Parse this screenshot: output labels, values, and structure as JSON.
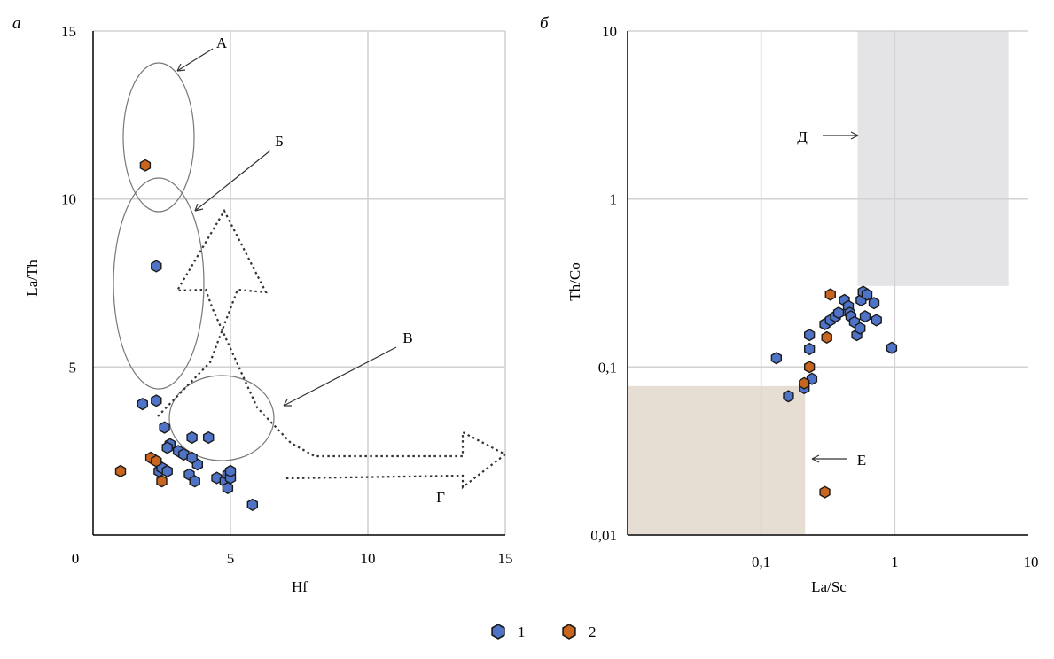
{
  "figure": {
    "panel_a_letter": "а",
    "panel_b_letter": "б",
    "legend": [
      {
        "label": "1",
        "color": "#4f74c7"
      },
      {
        "label": "2",
        "color": "#c8651e"
      }
    ]
  },
  "chart_data": [
    {
      "type": "scatter",
      "panel": "а",
      "title": "",
      "xlabel": "Hf",
      "ylabel": "La/Th",
      "xlim": [
        0,
        15
      ],
      "ylim": [
        0,
        15
      ],
      "x_ticks": [
        {
          "v": 0,
          "t": "0"
        },
        {
          "v": 5,
          "t": "5"
        },
        {
          "v": 10,
          "t": "10"
        },
        {
          "v": 15,
          "t": "15"
        }
      ],
      "y_ticks": [
        {
          "v": 5,
          "t": "5"
        },
        {
          "v": 10,
          "t": "10"
        },
        {
          "v": 15,
          "t": "15"
        }
      ],
      "grid": true,
      "region_labels": [
        "А",
        "Б",
        "В",
        "Г"
      ],
      "series": [
        {
          "name": "1",
          "color": "#4f74c7",
          "points": [
            [
              2.3,
              8.0
            ],
            [
              1.8,
              3.9
            ],
            [
              2.3,
              4.0
            ],
            [
              2.6,
              3.2
            ],
            [
              2.8,
              2.7
            ],
            [
              2.7,
              2.6
            ],
            [
              3.1,
              2.5
            ],
            [
              3.3,
              2.4
            ],
            [
              3.6,
              2.9
            ],
            [
              4.2,
              2.9
            ],
            [
              3.8,
              2.1
            ],
            [
              2.4,
              1.9
            ],
            [
              2.5,
              2.0
            ],
            [
              3.5,
              1.8
            ],
            [
              3.7,
              1.6
            ],
            [
              4.5,
              1.7
            ],
            [
              4.8,
              1.6
            ],
            [
              4.9,
              1.8
            ],
            [
              5.0,
              1.7
            ],
            [
              4.9,
              1.4
            ],
            [
              5.0,
              1.9
            ],
            [
              5.8,
              0.9
            ],
            [
              3.6,
              2.3
            ],
            [
              2.7,
              1.9
            ]
          ]
        },
        {
          "name": "2",
          "color": "#c8651e",
          "points": [
            [
              1.9,
              11.0
            ],
            [
              2.1,
              2.3
            ],
            [
              2.3,
              2.2
            ],
            [
              1.0,
              1.9
            ],
            [
              2.5,
              1.6
            ]
          ]
        }
      ]
    },
    {
      "type": "scatter",
      "panel": "б",
      "title": "",
      "xlabel": "La/Sc",
      "ylabel": "Th/Co",
      "xscale": "log",
      "yscale": "log",
      "xlim": [
        0.01,
        10
      ],
      "ylim": [
        0.01,
        10
      ],
      "x_ticks": [
        {
          "v": 0.1,
          "t": "0,1"
        },
        {
          "v": 1,
          "t": "1"
        },
        {
          "v": 10,
          "t": "10"
        }
      ],
      "y_ticks": [
        {
          "v": 0.01,
          "t": "0,01"
        },
        {
          "v": 0.1,
          "t": "0,1"
        },
        {
          "v": 1,
          "t": "1"
        },
        {
          "v": 10,
          "t": "10"
        }
      ],
      "grid": true,
      "region_labels": [
        "Д",
        "Е"
      ],
      "regions": [
        {
          "name": "Д",
          "x": [
            0.52,
            7.0
          ],
          "y": [
            0.3,
            10
          ],
          "color": "#e4e4e6"
        },
        {
          "name": "Е",
          "x": [
            0.01,
            0.21
          ],
          "y": [
            0.01,
            0.077
          ],
          "color": "#e6ddd3"
        }
      ],
      "series": [
        {
          "name": "1",
          "color": "#4f74c7",
          "points": [
            [
              0.13,
              0.113
            ],
            [
              0.16,
              0.067
            ],
            [
              0.21,
              0.075
            ],
            [
              0.23,
              0.155
            ],
            [
              0.23,
              0.128
            ],
            [
              0.24,
              0.085
            ],
            [
              0.3,
              0.18
            ],
            [
              0.33,
              0.19
            ],
            [
              0.36,
              0.2
            ],
            [
              0.38,
              0.21
            ],
            [
              0.42,
              0.25
            ],
            [
              0.45,
              0.23
            ],
            [
              0.46,
              0.21
            ],
            [
              0.47,
              0.2
            ],
            [
              0.5,
              0.185
            ],
            [
              0.52,
              0.155
            ],
            [
              0.55,
              0.17
            ],
            [
              0.56,
              0.25
            ],
            [
              0.58,
              0.28
            ],
            [
              0.6,
              0.2
            ],
            [
              0.62,
              0.27
            ],
            [
              0.7,
              0.24
            ],
            [
              0.73,
              0.19
            ],
            [
              0.95,
              0.13
            ]
          ]
        },
        {
          "name": "2",
          "color": "#c8651e",
          "points": [
            [
              0.33,
              0.27
            ],
            [
              0.31,
              0.15
            ],
            [
              0.23,
              0.1
            ],
            [
              0.21,
              0.08
            ],
            [
              0.3,
              0.018
            ]
          ]
        }
      ]
    }
  ]
}
